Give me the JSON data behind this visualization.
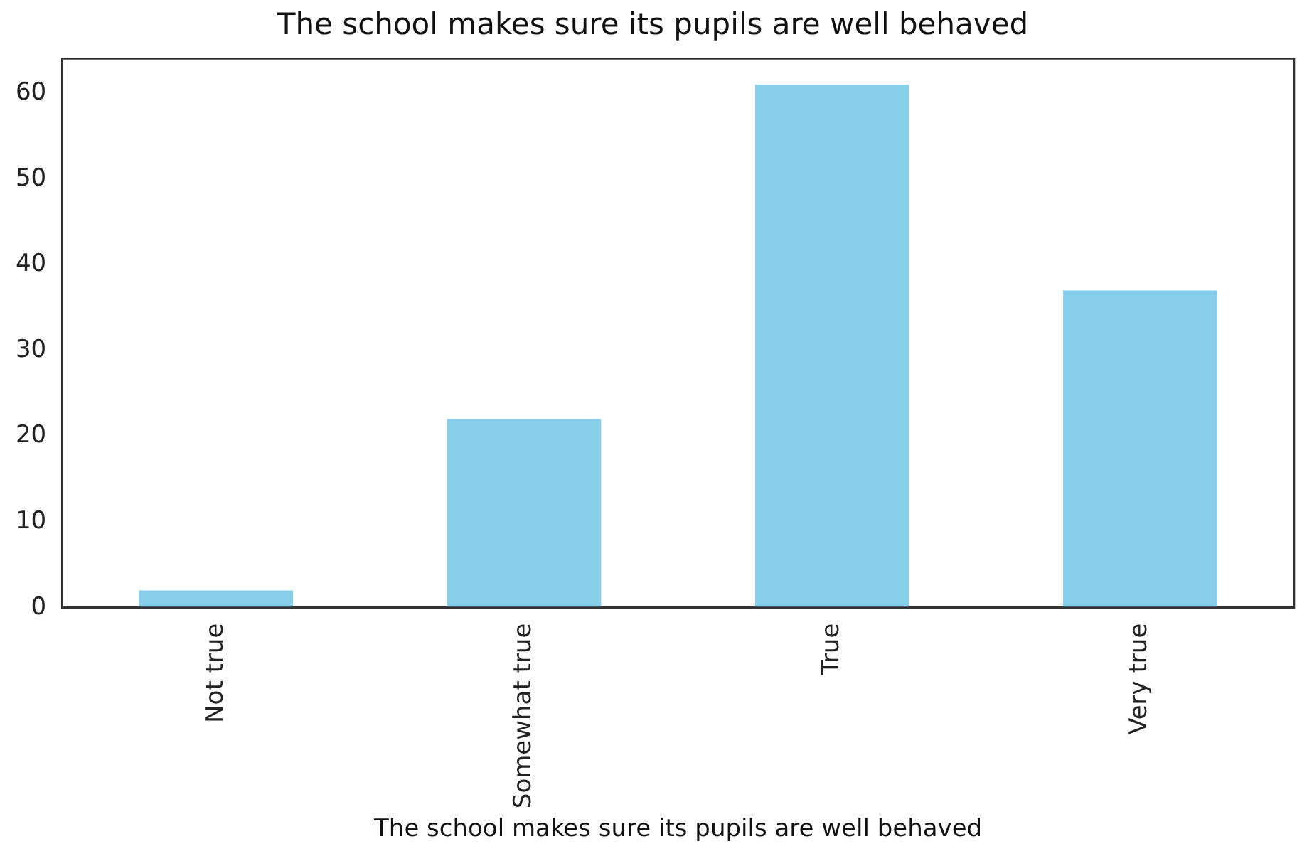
{
  "chart_data": {
    "type": "bar",
    "title": "The school makes sure its pupils are well behaved",
    "xlabel": "The school makes sure its pupils are well behaved",
    "categories": [
      "Not true",
      "Somewhat true",
      "True",
      "Very true"
    ],
    "values": [
      2,
      22,
      61,
      37
    ],
    "color": "#87ceeb",
    "ylim": [
      0,
      64.05
    ],
    "yticks": [
      0,
      10,
      20,
      30,
      40,
      50,
      60
    ],
    "grid": false,
    "legend": false
  }
}
